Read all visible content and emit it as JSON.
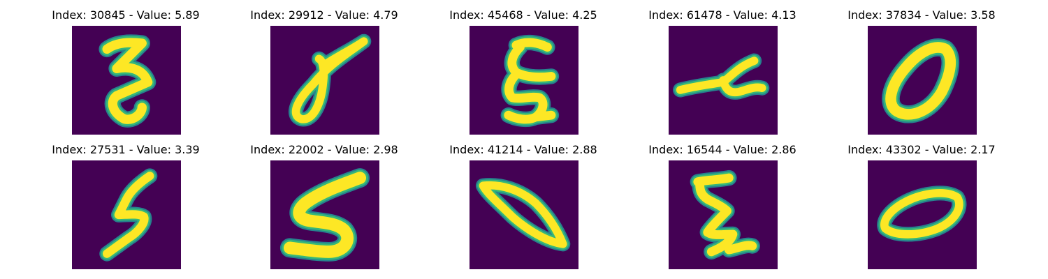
{
  "panels": [
    {
      "title": "Index: 30845 - Value: 5.89",
      "index": 30845,
      "value": 5.89,
      "glyph": "digit-3-handwritten"
    },
    {
      "title": "Index: 29912 - Value: 4.79",
      "index": 29912,
      "value": 4.79,
      "glyph": "digit-0-handwritten"
    },
    {
      "title": "Index: 45468 - Value: 4.25",
      "index": 45468,
      "value": 4.25,
      "glyph": "digit-3-handwritten"
    },
    {
      "title": "Index: 61478 - Value: 4.13",
      "index": 61478,
      "value": 4.13,
      "glyph": "digit-4-handwritten"
    },
    {
      "title": "Index: 37834 - Value: 3.58",
      "index": 37834,
      "value": 3.58,
      "glyph": "digit-0-handwritten"
    },
    {
      "title": "Index: 27531 - Value: 3.39",
      "index": 27531,
      "value": 3.39,
      "glyph": "digit-5-handwritten"
    },
    {
      "title": "Index: 22002 - Value: 2.98",
      "index": 22002,
      "value": 2.98,
      "glyph": "digit-5-handwritten"
    },
    {
      "title": "Index: 41214 - Value: 2.88",
      "index": 41214,
      "value": 2.88,
      "glyph": "digit-0-handwritten"
    },
    {
      "title": "Index: 16544 - Value: 2.86",
      "index": 16544,
      "value": 2.86,
      "glyph": "digit-3-handwritten"
    },
    {
      "title": "Index: 43302 - Value: 2.17",
      "index": 43302,
      "value": 2.17,
      "glyph": "digit-0-handwritten"
    }
  ],
  "colors": {
    "background": "#440154",
    "stroke_core": "#fde725",
    "stroke_edge_light": "#b5de2b",
    "stroke_edge_mid": "#35b779",
    "stroke_edge_dark": "#26828e"
  }
}
